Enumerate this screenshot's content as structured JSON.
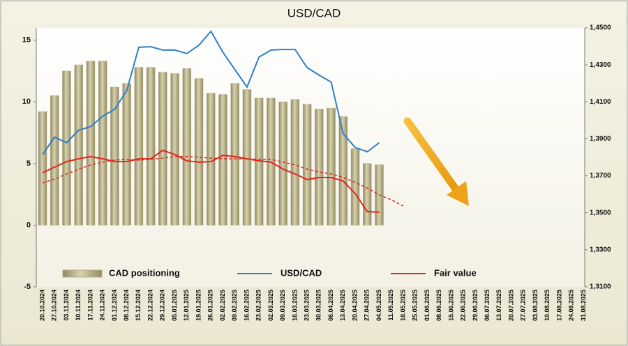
{
  "chart_data": {
    "type": "bar-line",
    "title": "USD/CAD",
    "categories": [
      "20.10.2024",
      "27.10.2024",
      "03.11.2024",
      "10.11.2024",
      "17.11.2024",
      "24.11.2024",
      "01.12.2024",
      "08.12.2024",
      "15.12.2024",
      "22.12.2024",
      "29.12.2024",
      "05.01.2025",
      "12.01.2025",
      "19.01.2025",
      "26.01.2025",
      "02.02.2025",
      "09.02.2025",
      "16.02.2025",
      "23.02.2025",
      "02.03.2025",
      "09.03.2025",
      "16.03.2025",
      "23.03.2025",
      "30.03.2025",
      "06.04.2025",
      "13.04.2025",
      "20.04.2025",
      "27.04.2025",
      "04.05.2025",
      "11.05.2025",
      "18.05.2025",
      "25.05.2025",
      "01.06.2025",
      "08.06.2025",
      "15.06.2025",
      "22.06.2025",
      "29.06.2025",
      "06.07.2025",
      "13.07.2025",
      "20.07.2025",
      "27.07.2025",
      "03.08.2025",
      "10.08.2025",
      "17.08.2025",
      "24.08.2025",
      "31.08.2025"
    ],
    "series": [
      {
        "name": "CAD positioning",
        "type": "bar",
        "axis": "y",
        "color": "#b5ad87",
        "values": [
          9.2,
          10.5,
          12.5,
          13.0,
          13.3,
          13.3,
          11.2,
          11.5,
          12.8,
          12.8,
          12.4,
          12.3,
          12.7,
          11.9,
          10.7,
          10.6,
          11.5,
          11.0,
          10.3,
          10.3,
          10.0,
          10.2,
          9.8,
          9.4,
          9.5,
          8.8,
          6.2,
          5.0,
          4.9,
          null,
          null,
          null,
          null,
          null,
          null,
          null,
          null,
          null,
          null,
          null,
          null,
          null,
          null,
          null,
          null,
          null
        ]
      },
      {
        "name": "USD/CAD",
        "type": "line",
        "axis": "y2",
        "color": "#2f7fc8",
        "values": [
          1.3815,
          1.3909,
          1.3879,
          1.3947,
          1.3966,
          1.4022,
          1.406,
          1.4161,
          1.4395,
          1.4398,
          1.438,
          1.438,
          1.4361,
          1.4406,
          1.4481,
          1.4368,
          1.4274,
          1.418,
          1.4342,
          1.438,
          1.4383,
          1.4383,
          1.4285,
          1.4244,
          1.4207,
          1.3928,
          1.3853,
          1.383,
          1.3879,
          null,
          null,
          null,
          null,
          null,
          null,
          null,
          null,
          null,
          null,
          null,
          null,
          null,
          null,
          null,
          null,
          null
        ]
      },
      {
        "name": "Fair value",
        "type": "line",
        "axis": "y2",
        "color": "#e8241c",
        "values": [
          1.3717,
          1.3747,
          1.3777,
          1.3792,
          1.3804,
          1.3792,
          1.3777,
          1.3777,
          1.3792,
          1.3792,
          1.3838,
          1.3815,
          1.3781,
          1.3774,
          1.3777,
          1.3811,
          1.3804,
          1.3792,
          1.3781,
          1.3774,
          1.3736,
          1.371,
          1.368,
          1.3691,
          1.3691,
          1.3672,
          1.3604,
          1.3507,
          1.3503,
          null,
          null,
          null,
          null,
          null,
          null,
          null,
          null,
          null,
          null,
          null,
          null,
          null,
          null,
          null,
          null,
          null
        ]
      },
      {
        "type": "line",
        "axis": "y2",
        "color": "#e8241c",
        "dashed": true,
        "values": [
          1.3661,
          1.3683,
          1.371,
          1.3736,
          1.3759,
          1.3774,
          1.3785,
          1.3789,
          1.3785,
          1.3789,
          1.3796,
          1.3804,
          1.3804,
          1.38,
          1.3796,
          1.3792,
          1.3792,
          1.3792,
          1.3789,
          1.3789,
          1.3774,
          1.3759,
          1.3736,
          1.3721,
          1.371,
          1.3691,
          1.3665,
          1.3634,
          1.3597,
          1.357,
          1.3537,
          null,
          null,
          null,
          null,
          null,
          null,
          null,
          null,
          null,
          null,
          null,
          null,
          null,
          null,
          null
        ]
      }
    ],
    "ylim": [
      -5,
      16
    ],
    "yticks": [
      -5,
      0,
      5,
      10,
      15
    ],
    "y2lim": [
      1.31,
      1.45
    ],
    "y2ticks": [
      {
        "value": 1.31,
        "label": "1,3100"
      },
      {
        "value": 1.33,
        "label": "1,3300"
      },
      {
        "value": 1.35,
        "label": "1,3500"
      },
      {
        "value": 1.37,
        "label": "1,3700"
      },
      {
        "value": 1.39,
        "label": "1,3900"
      },
      {
        "value": 1.41,
        "label": "1,4100"
      },
      {
        "value": 1.43,
        "label": "1,4300"
      },
      {
        "value": 1.45,
        "label": "1,4500"
      }
    ],
    "grid": false,
    "legend": "bottom"
  }
}
